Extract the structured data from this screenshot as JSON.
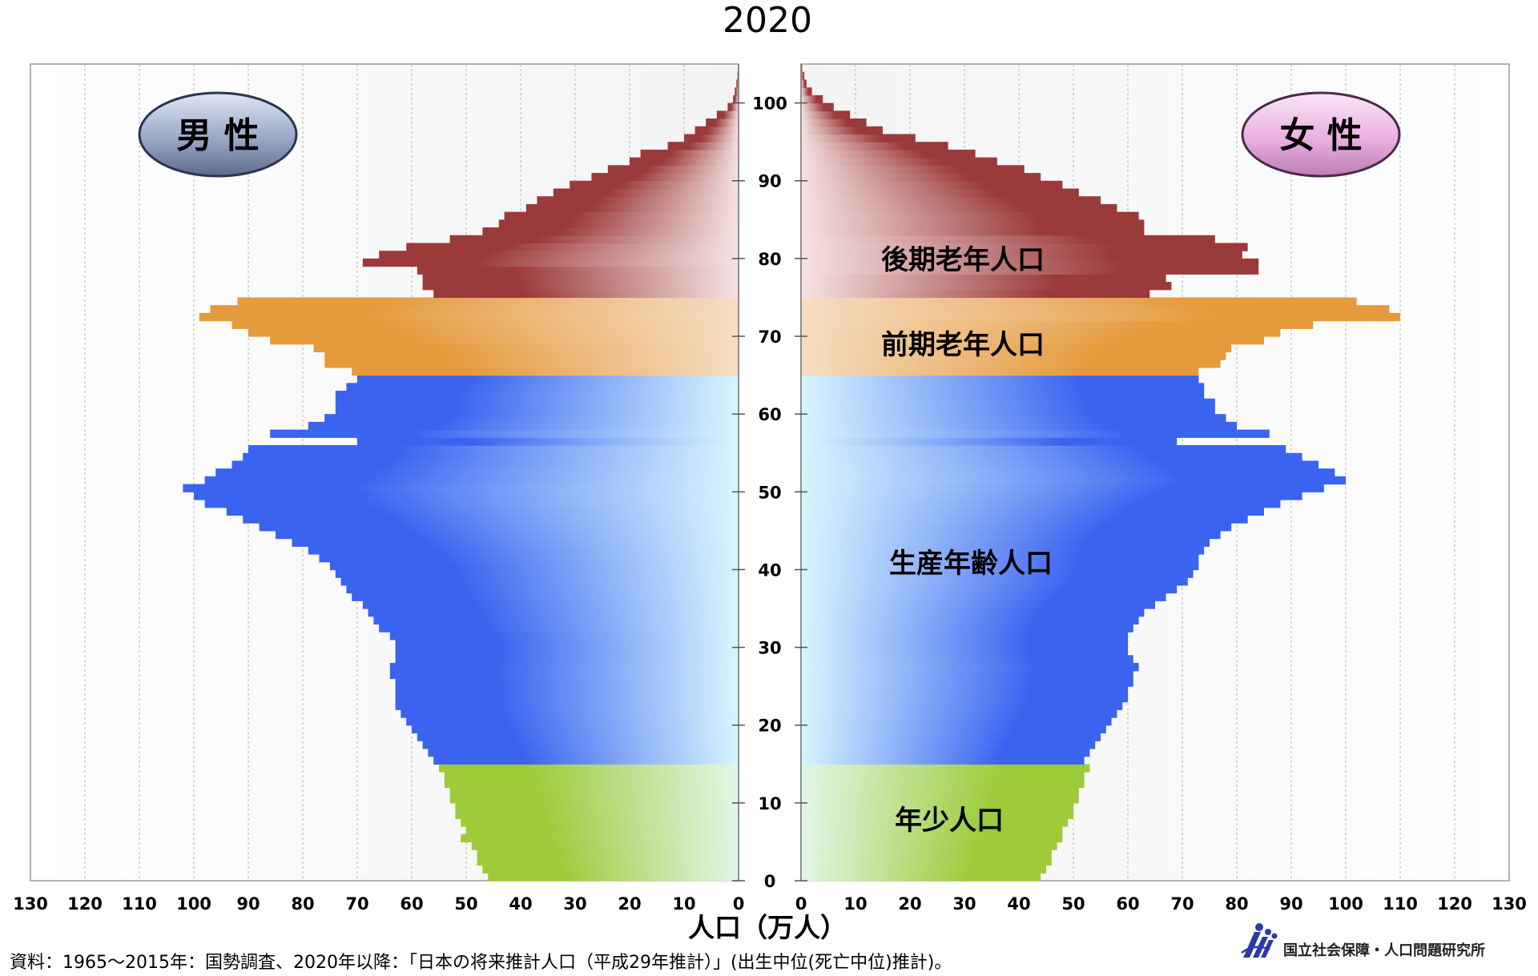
{
  "chart_data": {
    "type": "bar",
    "subtype": "population-pyramid",
    "title": "2020",
    "xlabel": "人口（万人）",
    "ylabel": "",
    "x_ticks": [
      0,
      10,
      20,
      30,
      40,
      50,
      60,
      70,
      80,
      90,
      100,
      110,
      120,
      130
    ],
    "y_ticks": [
      0,
      10,
      20,
      30,
      40,
      50,
      60,
      70,
      80,
      90,
      100
    ],
    "xlim": [
      0,
      130
    ],
    "ylim": [
      0,
      105
    ],
    "grid": true,
    "sides": {
      "male_label": "男 性",
      "female_label": "女 性"
    },
    "groups": [
      {
        "label": "年少人口",
        "age_from": 0,
        "age_to": 14,
        "color": "#9dcb3a"
      },
      {
        "label": "生産年齢人口",
        "age_from": 15,
        "age_to": 64,
        "color": "#3a63f0"
      },
      {
        "label": "前期老年人口",
        "age_from": 65,
        "age_to": 74,
        "color": "#e59a3c"
      },
      {
        "label": "後期老年人口",
        "age_from": 75,
        "age_to": 105,
        "color": "#9b3a3a"
      }
    ],
    "ages": [
      0,
      1,
      2,
      3,
      4,
      5,
      6,
      7,
      8,
      9,
      10,
      11,
      12,
      13,
      14,
      15,
      16,
      17,
      18,
      19,
      20,
      21,
      22,
      23,
      24,
      25,
      26,
      27,
      28,
      29,
      30,
      31,
      32,
      33,
      34,
      35,
      36,
      37,
      38,
      39,
      40,
      41,
      42,
      43,
      44,
      45,
      46,
      47,
      48,
      49,
      50,
      51,
      52,
      53,
      54,
      55,
      56,
      57,
      58,
      59,
      60,
      61,
      62,
      63,
      64,
      65,
      66,
      67,
      68,
      69,
      70,
      71,
      72,
      73,
      74,
      75,
      76,
      77,
      78,
      79,
      80,
      81,
      82,
      83,
      84,
      85,
      86,
      87,
      88,
      89,
      90,
      91,
      92,
      93,
      94,
      95,
      96,
      97,
      98,
      99,
      100,
      101,
      102,
      103,
      104,
      105
    ],
    "series": [
      {
        "name": "男 性",
        "values": [
          46,
          47,
          48,
          48,
          49,
          51,
          50,
          51,
          52,
          52,
          53,
          53,
          54,
          54,
          55,
          56,
          57,
          58,
          59,
          60,
          61,
          62,
          63,
          63,
          63,
          63,
          64,
          64,
          63,
          63,
          63,
          64,
          66,
          67,
          68,
          69,
          71,
          72,
          73,
          74,
          75,
          77,
          79,
          82,
          85,
          88,
          91,
          94,
          98,
          100,
          102,
          98,
          96,
          93,
          91,
          90,
          70,
          86,
          79,
          76,
          74,
          74,
          74,
          72,
          70,
          71,
          76,
          76,
          78,
          86,
          90,
          93,
          99,
          97,
          92,
          56,
          58,
          58,
          59,
          69,
          66,
          61,
          53,
          47,
          44,
          43,
          39,
          37,
          34,
          31,
          27,
          24,
          20,
          18,
          13,
          10,
          8,
          6,
          4,
          2,
          1,
          0.7,
          0.4,
          0.2,
          0.1,
          0
        ],
        "color": "#3a63f0"
      },
      {
        "name": "女 性",
        "values": [
          44,
          45,
          46,
          46,
          47,
          48,
          48,
          49,
          50,
          50,
          51,
          51,
          52,
          52,
          53,
          52,
          53,
          54,
          55,
          56,
          57,
          58,
          59,
          60,
          60,
          61,
          61,
          62,
          61,
          60,
          60,
          60,
          61,
          62,
          63,
          65,
          67,
          69,
          71,
          72,
          73,
          73,
          74,
          75,
          77,
          79,
          82,
          85,
          88,
          92,
          96,
          100,
          98,
          95,
          92,
          89,
          69,
          86,
          80,
          78,
          76,
          76,
          74,
          74,
          73,
          73,
          77,
          78,
          79,
          85,
          88,
          94,
          110,
          108,
          102,
          64,
          68,
          67,
          84,
          84,
          81,
          82,
          76,
          63,
          63,
          62,
          58,
          55,
          51,
          48,
          44,
          41,
          36,
          32,
          27,
          21,
          15,
          12,
          9,
          6,
          4,
          2,
          1,
          0.6,
          0.2,
          0
        ],
        "color": "#3a63f0"
      }
    ]
  },
  "source_text": "資料：1965〜2015年：国勢調査、2020年以降：「日本の将来推計人口（平成29年推計）」(出生中位(死亡中位)推計)。",
  "institution": "国立社会保障・人口問題研究所"
}
